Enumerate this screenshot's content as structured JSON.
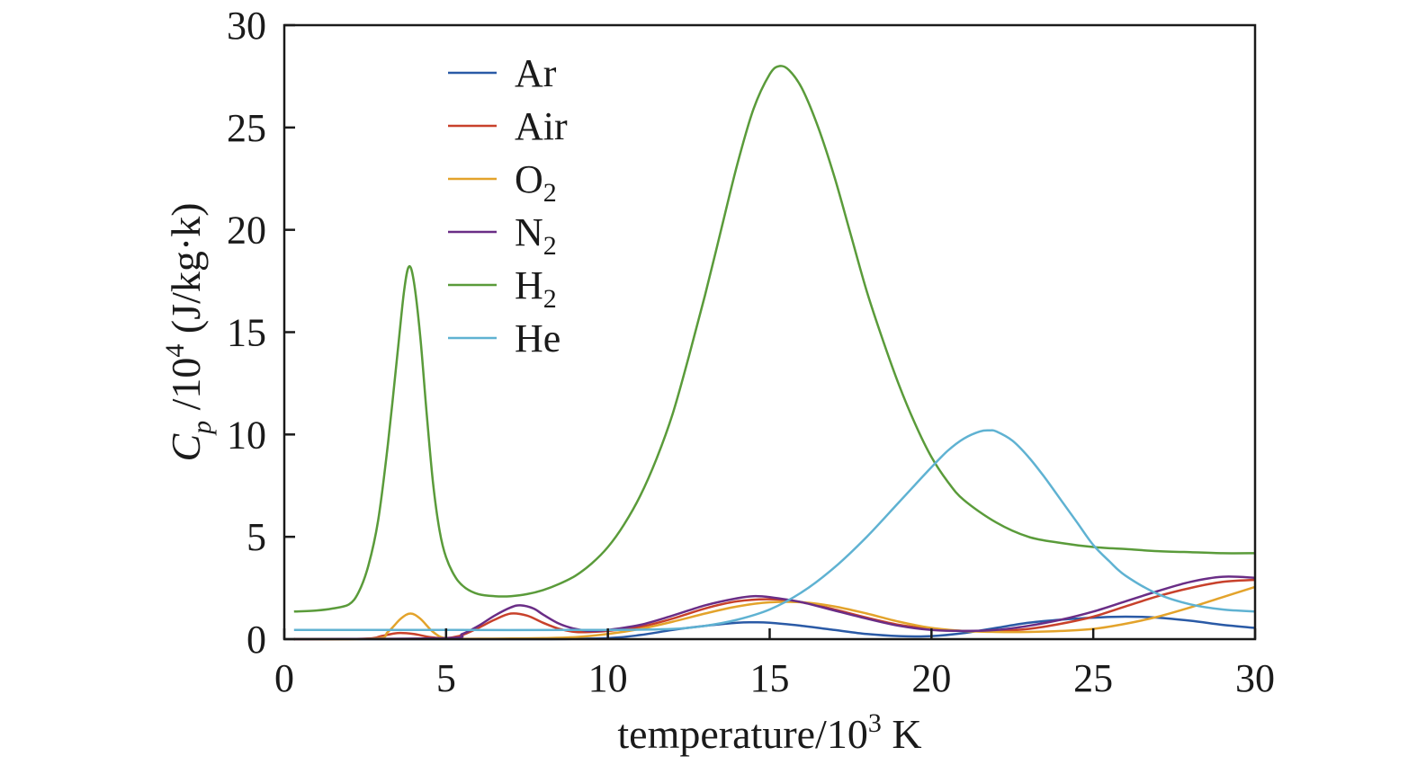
{
  "chart_data": {
    "type": "line",
    "xlabel": {
      "main": "temperature/10",
      "sup": "3",
      "unit": " K"
    },
    "ylabel": {
      "sym": "C",
      "sub": "p",
      "main": " /10",
      "sup": "4",
      "unit": " (J/kg·k)"
    },
    "xlim": [
      0,
      30
    ],
    "ylim": [
      0,
      30
    ],
    "xticks": [
      0,
      5,
      10,
      15,
      20,
      25,
      30
    ],
    "yticks": [
      0,
      5,
      10,
      15,
      20,
      25,
      30
    ],
    "grid": false,
    "legend_position": "top-center",
    "series": [
      {
        "key": "ar",
        "name": {
          "main": "Ar",
          "sub": ""
        },
        "color": "#2a5aa6",
        "x": [
          0.3,
          5,
          8,
          10,
          11,
          12,
          13,
          14,
          14.5,
          15,
          16,
          17,
          18,
          19,
          20,
          21,
          22,
          23,
          24,
          25,
          26,
          27,
          28,
          29,
          30
        ],
        "y": [
          0,
          0,
          0,
          0.05,
          0.2,
          0.45,
          0.65,
          0.8,
          0.82,
          0.8,
          0.65,
          0.45,
          0.25,
          0.15,
          0.15,
          0.3,
          0.55,
          0.8,
          0.95,
          1.05,
          1.1,
          1.05,
          0.9,
          0.7,
          0.55
        ]
      },
      {
        "key": "air",
        "name": {
          "main": "Air",
          "sub": ""
        },
        "color": "#c8412b",
        "x": [
          0.3,
          2.5,
          3,
          3.5,
          4,
          4.5,
          5,
          5.5,
          6,
          6.5,
          7,
          7.5,
          8,
          8.5,
          9,
          9.5,
          10,
          11,
          12,
          13,
          14,
          15,
          16,
          17,
          18,
          19,
          20,
          21,
          22,
          23,
          24,
          25,
          26,
          27,
          28,
          29,
          30
        ],
        "y": [
          0,
          0.02,
          0.15,
          0.3,
          0.25,
          0.1,
          0.05,
          0.2,
          0.55,
          0.95,
          1.25,
          1.15,
          0.8,
          0.5,
          0.35,
          0.35,
          0.4,
          0.6,
          1.0,
          1.5,
          1.85,
          1.95,
          1.8,
          1.45,
          1.05,
          0.7,
          0.5,
          0.4,
          0.4,
          0.5,
          0.75,
          1.1,
          1.6,
          2.1,
          2.5,
          2.8,
          2.9
        ]
      },
      {
        "key": "o2",
        "name": {
          "main": "O",
          "sub": "2"
        },
        "color": "#e3a32b",
        "x": [
          0.3,
          2.8,
          3.2,
          3.6,
          3.9,
          4.2,
          4.6,
          5,
          6,
          7,
          8,
          9,
          10,
          11,
          12,
          13,
          14,
          15,
          16,
          17,
          18,
          19,
          20,
          21,
          22,
          23,
          24,
          25,
          26,
          27,
          28,
          29,
          30
        ],
        "y": [
          0,
          0.03,
          0.35,
          1.0,
          1.25,
          1.0,
          0.35,
          0.05,
          0.02,
          0.03,
          0.05,
          0.1,
          0.25,
          0.5,
          0.85,
          1.25,
          1.6,
          1.8,
          1.8,
          1.6,
          1.25,
          0.85,
          0.55,
          0.4,
          0.35,
          0.35,
          0.4,
          0.5,
          0.75,
          1.1,
          1.55,
          2.05,
          2.55
        ]
      },
      {
        "key": "n2",
        "name": {
          "main": "N",
          "sub": "2"
        },
        "color": "#6a2d86",
        "x": [
          0.3,
          5,
          5.5,
          6,
          6.5,
          7,
          7.3,
          7.7,
          8,
          8.5,
          9,
          9.5,
          10,
          11,
          12,
          13,
          14,
          14.5,
          15,
          16,
          17,
          18,
          19,
          20,
          21,
          22,
          23,
          24,
          25,
          26,
          27,
          28,
          29,
          30
        ],
        "y": [
          0,
          0.05,
          0.25,
          0.65,
          1.15,
          1.55,
          1.65,
          1.5,
          1.2,
          0.75,
          0.5,
          0.4,
          0.45,
          0.7,
          1.15,
          1.65,
          2.0,
          2.1,
          2.05,
          1.8,
          1.4,
          1.0,
          0.65,
          0.45,
          0.4,
          0.45,
          0.65,
          0.95,
          1.35,
          1.85,
          2.35,
          2.8,
          3.05,
          3.0
        ]
      },
      {
        "key": "h2",
        "name": {
          "main": "H",
          "sub": "2"
        },
        "color": "#5a9b3a",
        "x": [
          0.3,
          1,
          1.5,
          2,
          2.3,
          2.6,
          2.9,
          3.2,
          3.5,
          3.7,
          3.85,
          4,
          4.2,
          4.4,
          4.6,
          4.8,
          5,
          5.3,
          5.6,
          6,
          6.5,
          7,
          7.5,
          8,
          8.5,
          9,
          9.5,
          10,
          10.5,
          11,
          11.5,
          12,
          12.5,
          13,
          13.5,
          14,
          14.5,
          15,
          15.3,
          15.6,
          16,
          16.5,
          17,
          17.5,
          18,
          18.5,
          19,
          19.5,
          20,
          20.5,
          21,
          22,
          23,
          24,
          25,
          26,
          27,
          28,
          29,
          30
        ],
        "y": [
          1.35,
          1.4,
          1.5,
          1.7,
          2.3,
          3.6,
          5.8,
          9.5,
          14.0,
          17.0,
          18.2,
          17.5,
          14.8,
          11.0,
          7.6,
          5.3,
          4.0,
          3.0,
          2.5,
          2.2,
          2.1,
          2.1,
          2.2,
          2.4,
          2.7,
          3.1,
          3.7,
          4.5,
          5.6,
          7.0,
          8.8,
          11.0,
          13.8,
          16.8,
          20.0,
          23.2,
          25.9,
          27.6,
          28.0,
          27.8,
          26.9,
          25.0,
          22.6,
          19.8,
          17.0,
          14.6,
          12.4,
          10.5,
          8.9,
          7.7,
          6.8,
          5.7,
          5.0,
          4.7,
          4.5,
          4.4,
          4.3,
          4.25,
          4.2,
          4.2
        ]
      },
      {
        "key": "he",
        "name": {
          "main": "He",
          "sub": ""
        },
        "color": "#5fb2d2",
        "x": [
          0.3,
          5,
          10,
          12,
          13,
          14,
          15,
          16,
          17,
          18,
          19,
          20,
          20.5,
          21,
          21.5,
          21.8,
          22,
          22.5,
          23,
          23.5,
          24,
          24.5,
          25,
          25.5,
          26,
          27,
          28,
          29,
          30
        ],
        "y": [
          0.45,
          0.45,
          0.45,
          0.5,
          0.65,
          0.95,
          1.45,
          2.3,
          3.5,
          5.0,
          6.7,
          8.4,
          9.2,
          9.8,
          10.15,
          10.2,
          10.15,
          9.7,
          8.9,
          7.9,
          6.8,
          5.7,
          4.6,
          3.8,
          3.1,
          2.2,
          1.7,
          1.45,
          1.35
        ]
      }
    ]
  }
}
